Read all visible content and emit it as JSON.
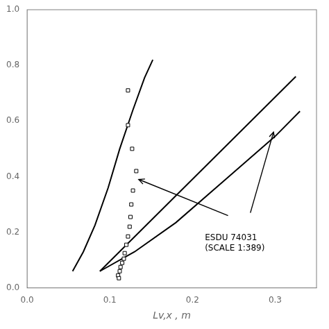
{
  "chart_data": {
    "type": "scatter",
    "x_label": "Lv,x , m",
    "xlim": [
      0,
      0.35
    ],
    "ylim": [
      0,
      1.0
    ],
    "xticks": [
      {
        "value": 0,
        "label": "0.0"
      },
      0.1,
      0.2,
      0.3
    ],
    "yticks": [
      {
        "value": 0,
        "label": "0.0"
      },
      0.2,
      0.4,
      0.6,
      0.8,
      {
        "value": 1.0,
        "label": "1.0"
      }
    ],
    "grid": false,
    "series": [
      {
        "type": "scatter",
        "marker": "square",
        "color": "#000000",
        "x": [
          0.122,
          0.122,
          0.127,
          0.132,
          0.128,
          0.126,
          0.125,
          0.124,
          0.122,
          0.12,
          0.118,
          0.117,
          0.115,
          0.113,
          0.112,
          0.11,
          0.111
        ],
        "values": [
          0.71,
          0.585,
          0.5,
          0.42,
          0.35,
          0.3,
          0.255,
          0.22,
          0.185,
          0.155,
          0.125,
          0.105,
          0.09,
          0.075,
          0.06,
          0.045,
          0.035
        ]
      },
      {
        "type": "line",
        "color": "#000000",
        "x": [
          0.055,
          0.068,
          0.082,
          0.098,
          0.112,
          0.128,
          0.142,
          0.152
        ],
        "values": [
          0.06,
          0.13,
          0.225,
          0.36,
          0.5,
          0.64,
          0.755,
          0.82
        ]
      },
      {
        "type": "line",
        "color": "#000000",
        "x": [
          0.088,
          0.13,
          0.18,
          0.24,
          0.3,
          0.33
        ],
        "values": [
          0.06,
          0.13,
          0.235,
          0.39,
          0.545,
          0.635
        ]
      },
      {
        "type": "line",
        "color": "#000000",
        "x": [
          0.088,
          0.325
        ],
        "values": [
          0.06,
          0.76
        ]
      }
    ],
    "annotations": [
      {
        "text": "ESDU 74031\n(SCALE 1:389)",
        "x": 0.215,
        "y": 0.195,
        "color": "#000000"
      }
    ],
    "arrows": [
      {
        "from": [
          0.243,
          0.26
        ],
        "to": [
          0.135,
          0.39
        ],
        "color": "#000000"
      },
      {
        "from": [
          0.27,
          0.27
        ],
        "to": [
          0.298,
          0.56
        ],
        "color": "#000000"
      }
    ]
  }
}
